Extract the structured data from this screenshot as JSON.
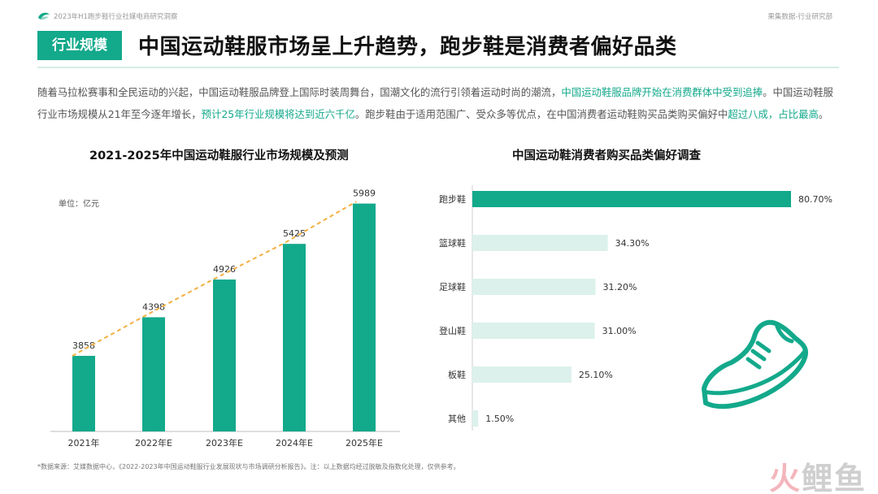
{
  "header": {
    "report_title": "2023年H1跑步鞋行业社媒电商研究洞察",
    "org": "果集数据-行业研究部"
  },
  "tag": "行业规模",
  "headline": "中国运动鞋服市场呈上升趋势，跑步鞋是消费者偏好品类",
  "intro": {
    "p1": "随着马拉松赛事和全民运动的兴起，中国运动鞋服品牌登上国际时装周舞台，国潮文化的流行引领着运动时尚的潮流，",
    "h1": "中国运动鞋服品牌开始在消费群体中受到追捧",
    "p2": "。中国运动鞋服行业市场规模从21年至今逐年增长，",
    "h2": "预计25年行业规模将达到近六千亿",
    "p3": "。跑步鞋由于适用范围广、受众多等优点，在中国消费者运动鞋购买品类购买偏好中",
    "h3": "超过八成，占比最高",
    "p4": "。"
  },
  "colors": {
    "accent": "#13a98b",
    "bar_light": "#dcf1ec",
    "trend": "#f5b041"
  },
  "chart_data": [
    {
      "type": "bar",
      "title": "2021-2025年中国运动鞋服行业市场规模及预测",
      "unit_label": "单位：亿元",
      "categories": [
        "2021年",
        "2022年E",
        "2023年E",
        "2024年E",
        "2025年E"
      ],
      "values": [
        3858,
        4398,
        4926,
        5425,
        5989
      ],
      "value_labels": [
        "3858",
        "4398",
        "4926",
        "5425",
        "5989"
      ],
      "trend_line": true,
      "ylim": [
        2800,
        6200
      ],
      "grid": false
    },
    {
      "type": "bar",
      "orientation": "horizontal",
      "title": "中国运动鞋消费者购买品类偏好调查",
      "categories": [
        "跑步鞋",
        "篮球鞋",
        "足球鞋",
        "登山鞋",
        "板鞋",
        "其他"
      ],
      "values": [
        80.7,
        34.3,
        31.2,
        31.0,
        25.1,
        1.5
      ],
      "value_labels": [
        "80.70%",
        "34.30%",
        "31.20%",
        "31.00%",
        "25.10%",
        "1.50%"
      ],
      "xlim": [
        0,
        80.7
      ],
      "grid": false
    }
  ],
  "footer": {
    "source": "*数据来源：艾媒数据中心，《2022-2023年中国运动鞋服行业发展现状与市场调研分析报告》。注：以上数据均经过脱敏及指数化处理，仅供参考。",
    "watermark_a": "火",
    "watermark_b": "鲤鱼"
  }
}
